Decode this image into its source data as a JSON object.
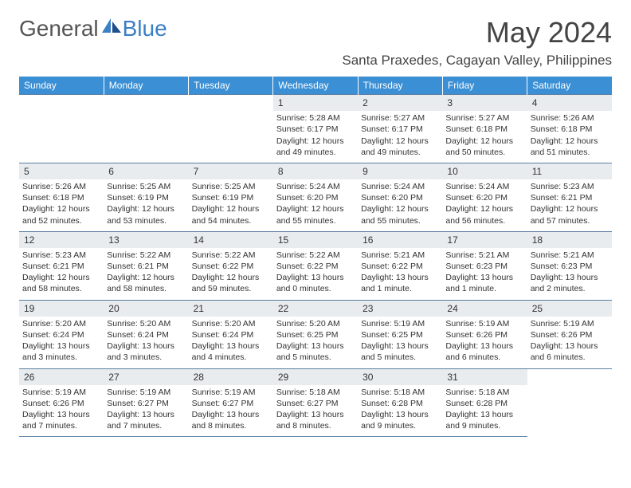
{
  "logo": {
    "text1": "General",
    "text2": "Blue"
  },
  "title": "May 2024",
  "location": "Santa Praxedes, Cagayan Valley, Philippines",
  "colors": {
    "header_bg": "#3b8fd4",
    "header_text": "#ffffff",
    "daynum_bg": "#e8ecef",
    "border": "#5b7fa3",
    "logo_blue": "#3b7fc4",
    "text": "#333333"
  },
  "daysOfWeek": [
    "Sunday",
    "Monday",
    "Tuesday",
    "Wednesday",
    "Thursday",
    "Friday",
    "Saturday"
  ],
  "startOffset": 3,
  "days": [
    {
      "n": "1",
      "sr": "5:28 AM",
      "ss": "6:17 PM",
      "dl": "12 hours and 49 minutes."
    },
    {
      "n": "2",
      "sr": "5:27 AM",
      "ss": "6:17 PM",
      "dl": "12 hours and 49 minutes."
    },
    {
      "n": "3",
      "sr": "5:27 AM",
      "ss": "6:18 PM",
      "dl": "12 hours and 50 minutes."
    },
    {
      "n": "4",
      "sr": "5:26 AM",
      "ss": "6:18 PM",
      "dl": "12 hours and 51 minutes."
    },
    {
      "n": "5",
      "sr": "5:26 AM",
      "ss": "6:18 PM",
      "dl": "12 hours and 52 minutes."
    },
    {
      "n": "6",
      "sr": "5:25 AM",
      "ss": "6:19 PM",
      "dl": "12 hours and 53 minutes."
    },
    {
      "n": "7",
      "sr": "5:25 AM",
      "ss": "6:19 PM",
      "dl": "12 hours and 54 minutes."
    },
    {
      "n": "8",
      "sr": "5:24 AM",
      "ss": "6:20 PM",
      "dl": "12 hours and 55 minutes."
    },
    {
      "n": "9",
      "sr": "5:24 AM",
      "ss": "6:20 PM",
      "dl": "12 hours and 55 minutes."
    },
    {
      "n": "10",
      "sr": "5:24 AM",
      "ss": "6:20 PM",
      "dl": "12 hours and 56 minutes."
    },
    {
      "n": "11",
      "sr": "5:23 AM",
      "ss": "6:21 PM",
      "dl": "12 hours and 57 minutes."
    },
    {
      "n": "12",
      "sr": "5:23 AM",
      "ss": "6:21 PM",
      "dl": "12 hours and 58 minutes."
    },
    {
      "n": "13",
      "sr": "5:22 AM",
      "ss": "6:21 PM",
      "dl": "12 hours and 58 minutes."
    },
    {
      "n": "14",
      "sr": "5:22 AM",
      "ss": "6:22 PM",
      "dl": "12 hours and 59 minutes."
    },
    {
      "n": "15",
      "sr": "5:22 AM",
      "ss": "6:22 PM",
      "dl": "13 hours and 0 minutes."
    },
    {
      "n": "16",
      "sr": "5:21 AM",
      "ss": "6:22 PM",
      "dl": "13 hours and 1 minute."
    },
    {
      "n": "17",
      "sr": "5:21 AM",
      "ss": "6:23 PM",
      "dl": "13 hours and 1 minute."
    },
    {
      "n": "18",
      "sr": "5:21 AM",
      "ss": "6:23 PM",
      "dl": "13 hours and 2 minutes."
    },
    {
      "n": "19",
      "sr": "5:20 AM",
      "ss": "6:24 PM",
      "dl": "13 hours and 3 minutes."
    },
    {
      "n": "20",
      "sr": "5:20 AM",
      "ss": "6:24 PM",
      "dl": "13 hours and 3 minutes."
    },
    {
      "n": "21",
      "sr": "5:20 AM",
      "ss": "6:24 PM",
      "dl": "13 hours and 4 minutes."
    },
    {
      "n": "22",
      "sr": "5:20 AM",
      "ss": "6:25 PM",
      "dl": "13 hours and 5 minutes."
    },
    {
      "n": "23",
      "sr": "5:19 AM",
      "ss": "6:25 PM",
      "dl": "13 hours and 5 minutes."
    },
    {
      "n": "24",
      "sr": "5:19 AM",
      "ss": "6:26 PM",
      "dl": "13 hours and 6 minutes."
    },
    {
      "n": "25",
      "sr": "5:19 AM",
      "ss": "6:26 PM",
      "dl": "13 hours and 6 minutes."
    },
    {
      "n": "26",
      "sr": "5:19 AM",
      "ss": "6:26 PM",
      "dl": "13 hours and 7 minutes."
    },
    {
      "n": "27",
      "sr": "5:19 AM",
      "ss": "6:27 PM",
      "dl": "13 hours and 7 minutes."
    },
    {
      "n": "28",
      "sr": "5:19 AM",
      "ss": "6:27 PM",
      "dl": "13 hours and 8 minutes."
    },
    {
      "n": "29",
      "sr": "5:18 AM",
      "ss": "6:27 PM",
      "dl": "13 hours and 8 minutes."
    },
    {
      "n": "30",
      "sr": "5:18 AM",
      "ss": "6:28 PM",
      "dl": "13 hours and 9 minutes."
    },
    {
      "n": "31",
      "sr": "5:18 AM",
      "ss": "6:28 PM",
      "dl": "13 hours and 9 minutes."
    }
  ],
  "labels": {
    "sunrise": "Sunrise: ",
    "sunset": "Sunset: ",
    "daylight": "Daylight: "
  }
}
